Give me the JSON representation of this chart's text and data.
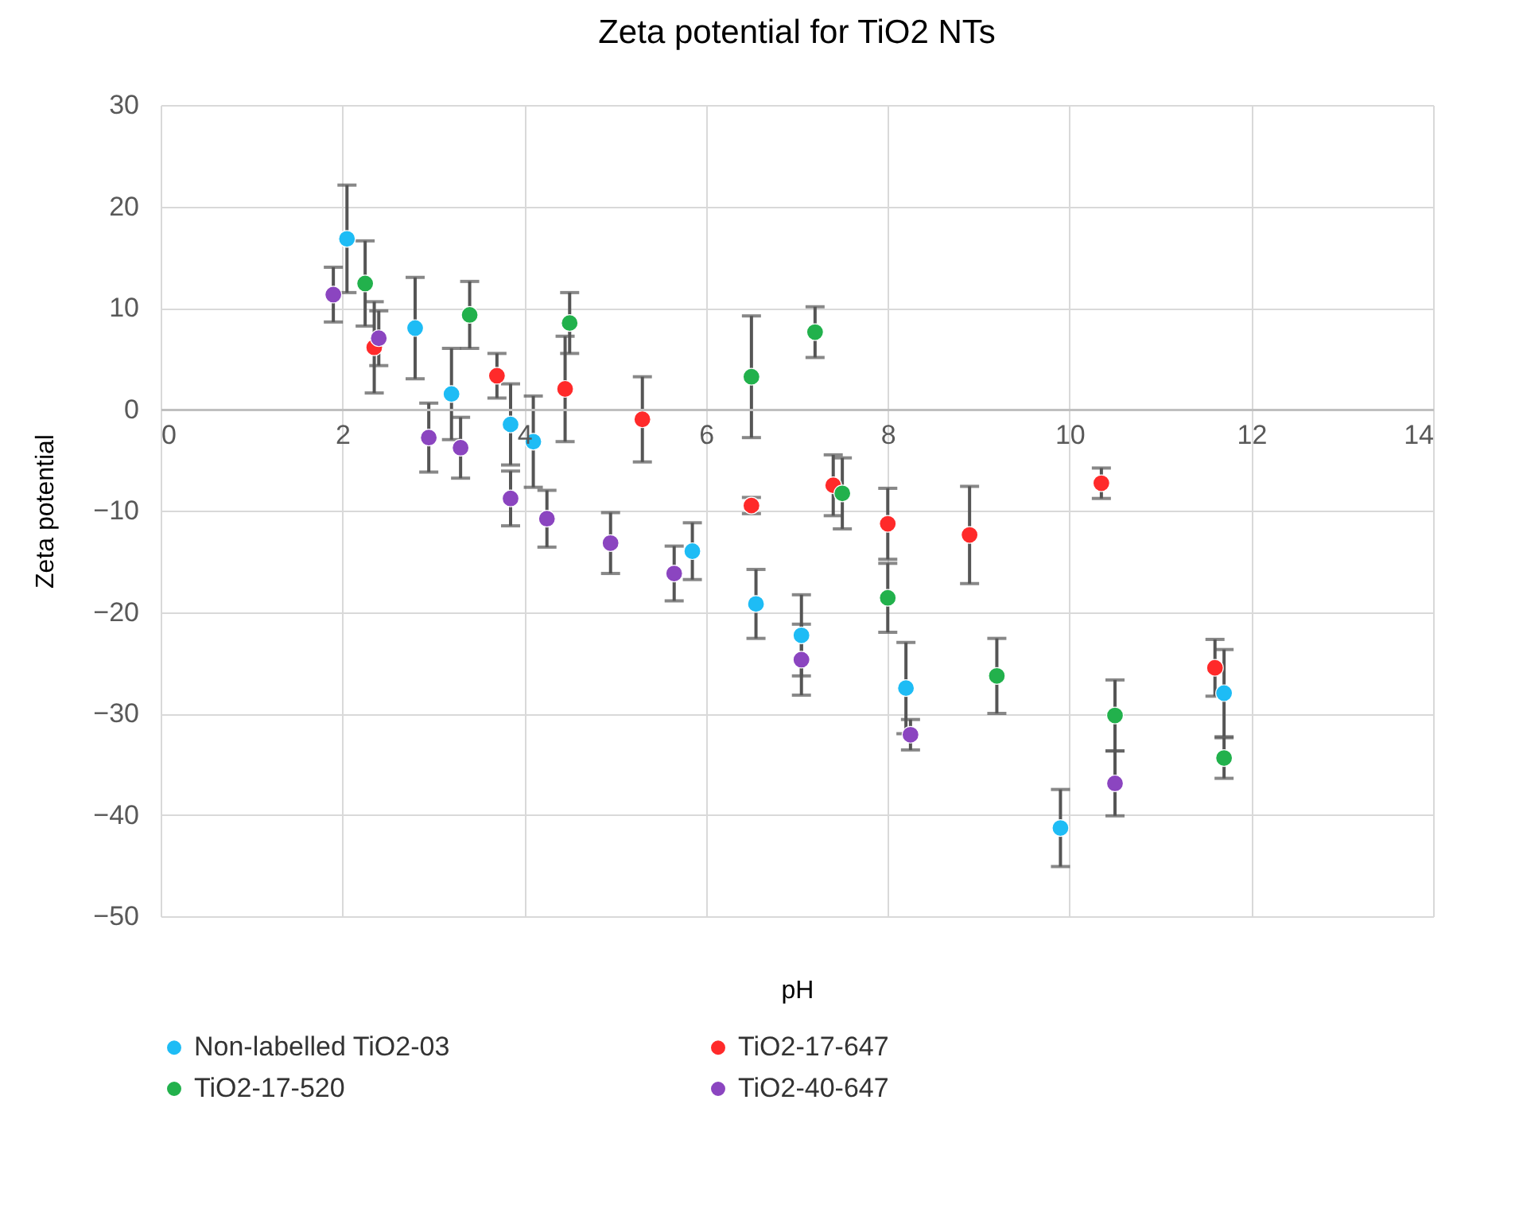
{
  "chart_data": {
    "type": "scatter",
    "title": "Zeta potential for TiO2 NTs",
    "xlabel": "pH",
    "ylabel": "Zeta potential",
    "xlim": [
      0,
      14
    ],
    "xticks": [
      0,
      2,
      4,
      6,
      8,
      10,
      12,
      14
    ],
    "ylim": [
      -50,
      30
    ],
    "yticks": [
      -50,
      -40,
      -30,
      -20,
      -10,
      0,
      10,
      20,
      30
    ],
    "grid": true,
    "legend": "bottom",
    "marker": "circle",
    "series": [
      {
        "name": "Non-labelled TiO2-03",
        "color": "#1ebcf5",
        "x": [
          2.05,
          2.8,
          3.2,
          3.85,
          4.1,
          5.85,
          6.55,
          7.05,
          8.2,
          9.9,
          11.7
        ],
        "values": [
          16.8,
          8,
          1.5,
          -1.5,
          -3.2,
          -14,
          -19.2,
          -22.3,
          -27.5,
          -41.3,
          -28
        ],
        "errors": [
          5.3,
          5,
          4.5,
          4,
          4.5,
          2.8,
          3.4,
          4,
          4.5,
          3.8,
          4.3
        ]
      },
      {
        "name": "TiO2-17-647",
        "color": "#ff2a2a",
        "x": [
          2.35,
          3.7,
          4.45,
          5.3,
          6.5,
          7.4,
          8,
          8.9,
          10.35,
          11.6
        ],
        "values": [
          6.1,
          3.3,
          2,
          -1,
          -9.5,
          -7.5,
          -11.3,
          -12.4,
          -7.3,
          -25.5
        ],
        "errors": [
          4.5,
          2.2,
          5.2,
          4.2,
          0.8,
          3,
          3.5,
          4.8,
          1.5,
          2.8
        ]
      },
      {
        "name": "TiO2-17-520",
        "color": "#22b14c",
        "x": [
          2.25,
          3.4,
          4.5,
          6.5,
          7.2,
          7.5,
          8,
          9.2,
          10.5,
          11.7
        ],
        "values": [
          12.4,
          9.3,
          8.5,
          3.2,
          7.6,
          -8.3,
          -18.6,
          -26.3,
          -30.2,
          -34.4
        ],
        "errors": [
          4.2,
          3.3,
          3,
          6,
          2.5,
          3.5,
          3.4,
          3.7,
          3.5,
          2
        ]
      },
      {
        "name": "TiO2-40-647",
        "color": "#8b45c0",
        "x": [
          1.9,
          2.4,
          2.95,
          3.3,
          3.85,
          4.25,
          4.95,
          5.65,
          7.05,
          8.25,
          10.5
        ],
        "values": [
          11.3,
          7,
          -2.8,
          -3.8,
          -8.8,
          -10.8,
          -13.2,
          -16.2,
          -24.7,
          -32.1,
          -36.9
        ],
        "errors": [
          2.7,
          2.7,
          3.4,
          3,
          2.7,
          2.8,
          3,
          2.7,
          3.5,
          1.5,
          3.2
        ]
      }
    ]
  }
}
